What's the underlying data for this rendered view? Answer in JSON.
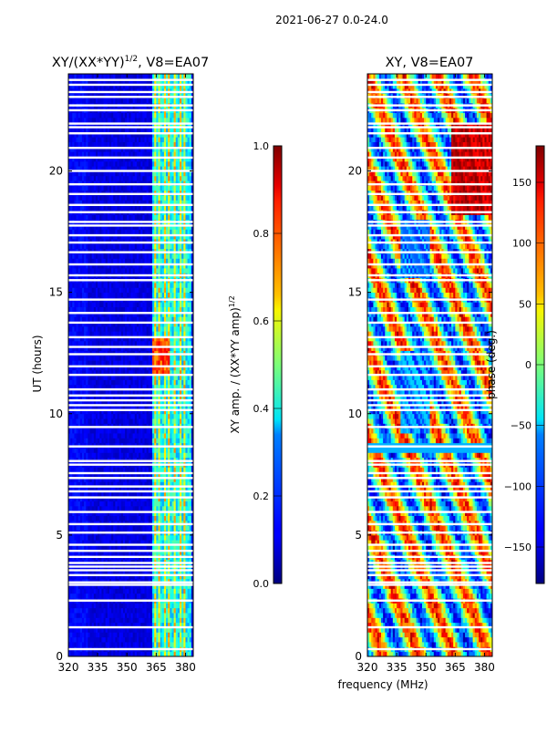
{
  "figure": {
    "suptitle": "2021-06-27 0.0-24.0"
  },
  "chart_data": [
    {
      "type": "heatmap",
      "title_main": "XY/(XX*YY)",
      "title_sup": "1/2",
      "title_tail": ", V8=EA07",
      "xlabel": "",
      "ylabel": "UT (hours)",
      "xlim": [
        320,
        384
      ],
      "ylim": [
        0,
        24
      ],
      "xticks": [
        320,
        335,
        350,
        365,
        380
      ],
      "yticks": [
        0,
        5,
        10,
        15,
        20
      ],
      "colorbar": {
        "label_main": "XY amp. / (XX*YY amp)",
        "label_sup": "1/2",
        "range": [
          0.0,
          1.0
        ],
        "ticks": [
          "0.0",
          "0.2",
          "0.4",
          "0.6",
          "0.8",
          "1.0"
        ],
        "tick_values": [
          0.0,
          0.2,
          0.4,
          0.6,
          0.8,
          1.0
        ],
        "colormap": "jet"
      },
      "description_values": {
        "background_level": 0.1,
        "bright_channel_band_MHz": [
          363,
          382
        ],
        "bright_level": 0.5
      }
    },
    {
      "type": "heatmap",
      "title": "XY, V8=EA07",
      "xlabel": "frequency (MHz)",
      "ylabel": "",
      "xlim": [
        320,
        384
      ],
      "ylim": [
        0,
        24
      ],
      "xticks": [
        320,
        335,
        350,
        365,
        380
      ],
      "yticks": [
        0,
        5,
        10,
        15,
        20
      ],
      "colorbar": {
        "label": "phase (deg.)",
        "range": [
          -180,
          180
        ],
        "ticks": [
          "150",
          "100",
          "50",
          "0",
          "−50",
          "−100",
          "−150"
        ],
        "tick_values": [
          150,
          100,
          50,
          0,
          -50,
          -100,
          -150
        ],
        "colormap": "jet"
      }
    }
  ],
  "flagged_hours": [
    0.3,
    1.2,
    2.3,
    2.95,
    3.05,
    3.35,
    3.55,
    3.7,
    3.85,
    4.1,
    4.35,
    4.6,
    5.1,
    5.45,
    5.95,
    6.55,
    6.8,
    7.0,
    7.35,
    7.55,
    7.9,
    8.05,
    8.65,
    9.45,
    10.15,
    10.35,
    10.55,
    10.75,
    11.0,
    11.6,
    11.95,
    12.45,
    12.75,
    13.15,
    13.75,
    14.15,
    14.7,
    15.5,
    15.7,
    16.15,
    16.65,
    17.05,
    17.35,
    17.75,
    17.9,
    18.3,
    18.6,
    19.05,
    19.45,
    20.0,
    20.55,
    20.95,
    21.55,
    21.8,
    21.95,
    22.5,
    22.7,
    23.05,
    23.25,
    23.55,
    23.75
  ]
}
